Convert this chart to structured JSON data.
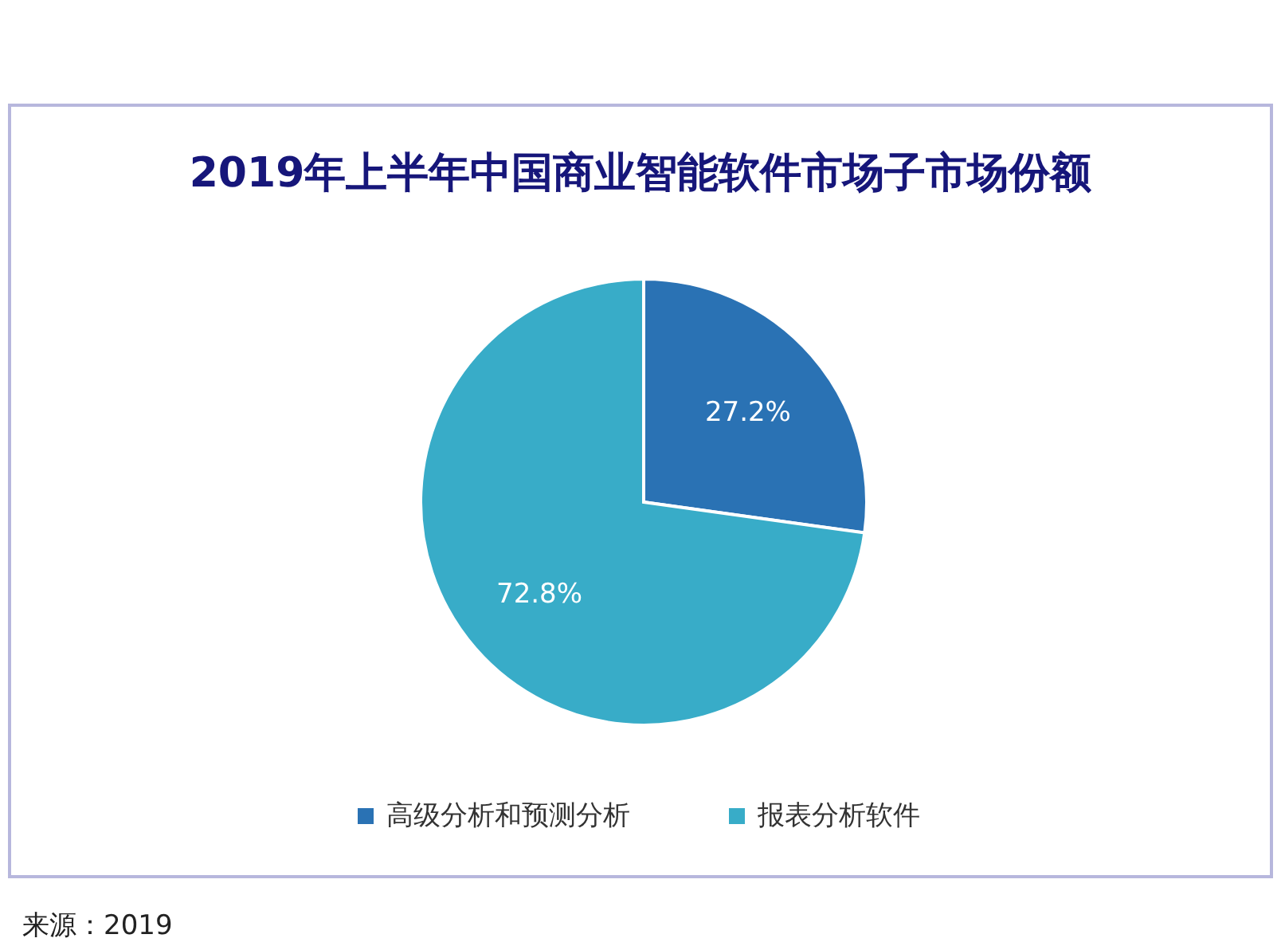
{
  "chart_data": {
    "type": "pie",
    "title": "2019年上半年中国商业智能软件市场子市场份额",
    "categories": [
      "高级分析和预测分析",
      "报表分析软件"
    ],
    "values": [
      27.2,
      72.8
    ],
    "colors": [
      "#2a72b4",
      "#38acc8"
    ],
    "value_labels": [
      "27.2%",
      "72.8%"
    ],
    "legend": "bottom",
    "annotations": [
      "来源：2019"
    ]
  }
}
